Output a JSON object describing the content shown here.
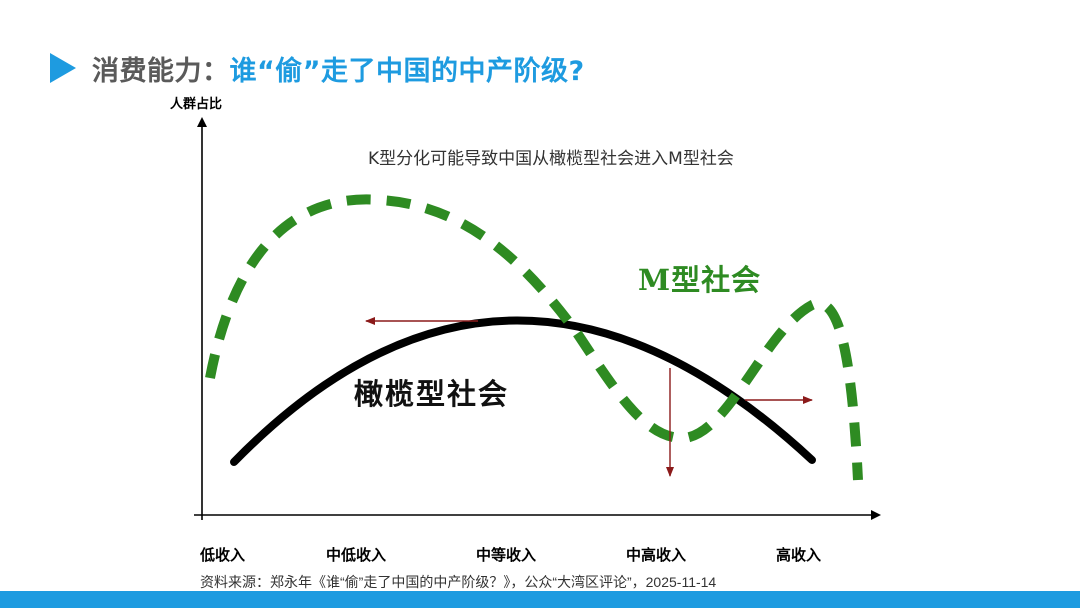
{
  "header": {
    "title_prefix": "消费能力：",
    "title_main": "谁“偷”走了中国的中产阶级?"
  },
  "diagram": {
    "title": "K型分化可能导致中国从橄榄型社会进入M型社会",
    "y_axis_label": "人群占比",
    "x_categories": [
      "低收入",
      "中低收入",
      "中等收入",
      "中高收入",
      "高收入"
    ],
    "olive_label": "橄榄型社会",
    "m_label": "M型社会"
  },
  "colors": {
    "accent_blue": "#1e9be0",
    "green_dash": "#2e8b22",
    "arrow_red": "#8b1a1a",
    "curve_black": "#000000"
  },
  "footer": {
    "source": "资料来源：郑永年《谁“偷”走了中国的中产阶级？》，公众“大湾区评论”，2025-11-14"
  }
}
